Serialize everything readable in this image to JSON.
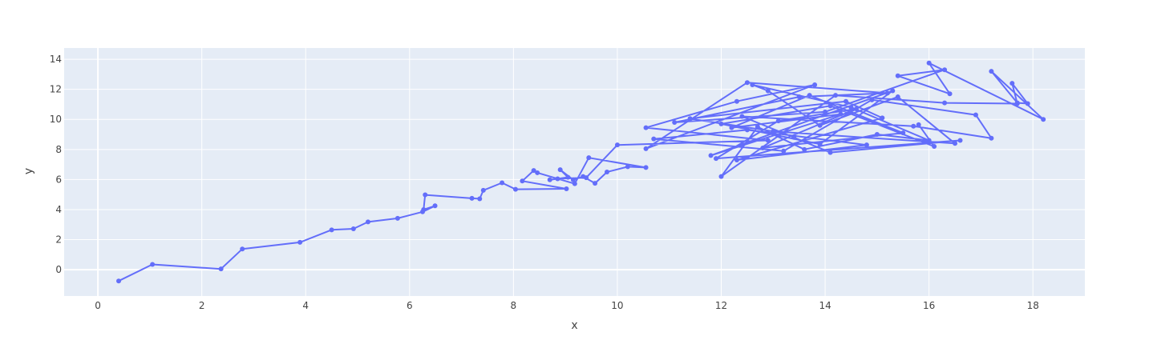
{
  "chart_data": {
    "type": "line",
    "mode": "lines+markers",
    "xlabel": "x",
    "ylabel": "y",
    "xlim": [
      -0.65,
      19.0
    ],
    "ylim": [
      -1.75,
      14.75
    ],
    "xticks": [
      0,
      2,
      4,
      6,
      8,
      10,
      12,
      14,
      16,
      18
    ],
    "yticks": [
      0,
      2,
      4,
      6,
      8,
      10,
      12,
      14
    ],
    "grid": true,
    "colors": {
      "plot_bg": "#e5ecf6",
      "grid": "#ffffff",
      "line": "#636efa",
      "text": "#444444"
    },
    "series": [
      {
        "x": [
          0.4,
          1.05,
          2.37,
          2.78,
          3.89,
          4.5,
          4.92,
          5.2,
          5.77,
          6.25,
          6.49,
          6.27,
          6.3,
          7.2,
          7.35,
          7.42,
          7.78,
          8.04,
          9.02,
          8.17,
          8.39,
          8.46,
          9.18,
          9.45,
          10.55,
          10.2,
          9.8,
          9.57,
          9.34,
          9.15,
          8.9,
          9.05,
          8.7,
          8.85,
          9.4,
          10.0,
          12.9,
          10.55,
          12.3,
          13.8,
          10.55,
          12.5,
          15.2,
          13.5,
          11.1,
          14.0,
          16.3,
          15.4,
          16.4,
          16.0,
          18.2,
          17.2,
          17.7,
          17.9,
          17.6,
          17.7,
          16.3,
          14.2,
          12.0,
          12.7,
          13.6,
          15.0,
          16.0,
          14.5,
          12.6,
          12.9,
          13.9,
          15.4,
          16.5,
          13.0,
          11.4,
          14.4,
          15.1,
          12.3,
          14.8,
          12.5,
          10.7,
          13.2,
          14.9,
          16.9,
          17.2,
          15.7,
          12.4,
          13.4,
          14.1,
          16.6,
          11.9,
          13.1,
          14.6,
          12.8,
          15.5,
          13.7,
          12.2,
          14.3,
          11.8,
          15.3,
          13.9,
          12.0,
          14.1,
          16.1,
          15.8
        ],
        "y": [
          -0.75,
          0.35,
          0.05,
          1.38,
          1.82,
          2.65,
          2.72,
          3.18,
          3.42,
          3.85,
          4.25,
          4.0,
          4.98,
          4.75,
          4.72,
          5.28,
          5.78,
          5.35,
          5.38,
          5.9,
          6.6,
          6.45,
          5.72,
          7.45,
          6.8,
          6.85,
          6.5,
          5.75,
          6.2,
          5.98,
          6.65,
          6.15,
          5.98,
          6.05,
          6.12,
          8.3,
          8.6,
          9.45,
          11.2,
          12.3,
          8.05,
          12.45,
          11.75,
          11.5,
          9.8,
          10.5,
          13.3,
          12.9,
          11.7,
          13.75,
          10.0,
          13.2,
          11.1,
          11.05,
          12.4,
          11.05,
          11.1,
          11.6,
          6.2,
          9.5,
          8.0,
          9.0,
          8.6,
          10.8,
          12.3,
          11.9,
          9.6,
          11.5,
          8.4,
          9.2,
          10.05,
          11.2,
          10.1,
          7.3,
          8.3,
          9.3,
          8.7,
          7.9,
          11.3,
          10.3,
          8.75,
          9.55,
          10.2,
          8.8,
          7.8,
          8.6,
          7.4,
          9.9,
          10.7,
          8.1,
          9.1,
          11.6,
          9.45,
          10.35,
          7.6,
          11.9,
          8.35,
          9.7,
          10.9,
          8.2,
          9.65
        ]
      }
    ]
  }
}
